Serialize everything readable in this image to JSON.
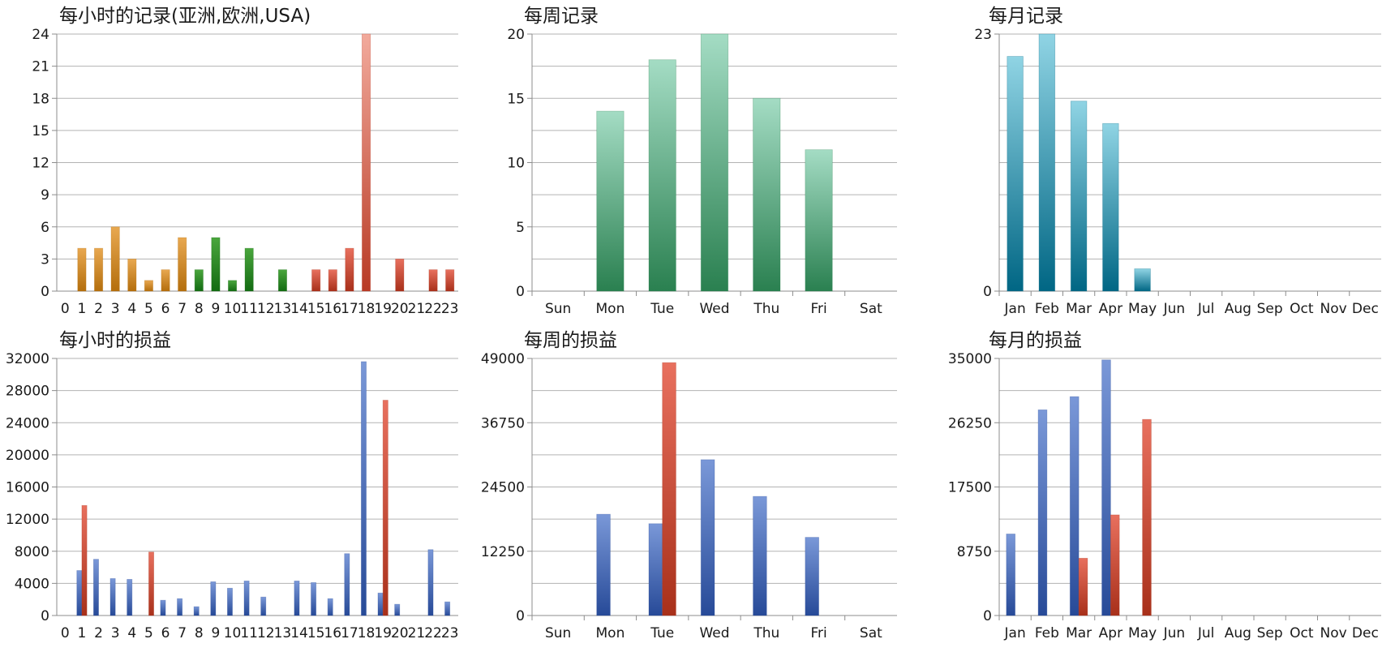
{
  "colors": {
    "orange": [
      "#e8a850",
      "#b46e0c"
    ],
    "green": [
      "#4aa63d",
      "#136b12"
    ],
    "red": [
      "#e8705e",
      "#a8301a"
    ],
    "blue": [
      "#7a98d8",
      "#274a98"
    ],
    "lightred": [
      "#f2aa9c",
      "#b83a25"
    ],
    "teal": [
      "#a4dcc4",
      "#2a8050"
    ],
    "cyan": [
      "#90d4e4",
      "#006684"
    ]
  },
  "chart_data": [
    {
      "type": "bar",
      "title": "每小时的记录(亚洲,欧洲,USA)",
      "categories": [
        "0",
        "1",
        "2",
        "3",
        "4",
        "5",
        "6",
        "7",
        "8",
        "9",
        "10",
        "11",
        "12",
        "13",
        "14",
        "15",
        "16",
        "17",
        "18",
        "19",
        "20",
        "21",
        "22",
        "23"
      ],
      "ylim": [
        0,
        24
      ],
      "yticks": [
        0,
        3,
        6,
        9,
        12,
        15,
        18,
        21,
        24
      ],
      "grid": true,
      "series": [
        {
          "values": [
            0,
            4,
            4,
            6,
            3,
            1,
            2,
            5,
            2,
            5,
            1,
            4,
            0,
            2,
            0,
            2,
            2,
            4,
            24,
            0,
            3,
            0,
            2,
            2
          ]
        }
      ],
      "bar_colors": [
        "orange",
        "orange",
        "orange",
        "orange",
        "orange",
        "orange",
        "orange",
        "orange",
        "green",
        "green",
        "green",
        "green",
        "green",
        "green",
        "green",
        "red",
        "red",
        "red",
        "lightred",
        "red",
        "red",
        "red",
        "red",
        "red"
      ]
    },
    {
      "type": "bar",
      "title": "每周记录",
      "categories": [
        "Sun",
        "Mon",
        "Tue",
        "Wed",
        "Thu",
        "Fri",
        "Sat"
      ],
      "ylim": [
        0,
        20
      ],
      "yticks": [
        0,
        5,
        10,
        15,
        20
      ],
      "grid": true,
      "series": [
        {
          "values": [
            0,
            14,
            18,
            20,
            15,
            11,
            0
          ],
          "color": "teal"
        }
      ]
    },
    {
      "type": "bar",
      "title": "每月记录",
      "categories": [
        "Jan",
        "Feb",
        "Mar",
        "Apr",
        "May",
        "Jun",
        "Jul",
        "Aug",
        "Sep",
        "Oct",
        "Nov",
        "Dec"
      ],
      "ylim": [
        0,
        23
      ],
      "yticks": [
        0,
        23
      ],
      "grid": true,
      "series": [
        {
          "values": [
            21,
            23,
            17,
            15,
            2,
            0,
            0,
            0,
            0,
            0,
            0,
            0
          ],
          "color": "cyan"
        }
      ]
    },
    {
      "type": "bar",
      "title": "每小时的损益",
      "categories": [
        "0",
        "1",
        "2",
        "3",
        "4",
        "5",
        "6",
        "7",
        "8",
        "9",
        "10",
        "11",
        "12",
        "13",
        "14",
        "15",
        "16",
        "17",
        "18",
        "19",
        "20",
        "21",
        "22",
        "23"
      ],
      "ylim": [
        0,
        32000
      ],
      "yticks": [
        0,
        4000,
        8000,
        12000,
        16000,
        20000,
        24000,
        28000,
        32000
      ],
      "grid": true,
      "series": [
        {
          "values": [
            0,
            5600,
            7000,
            4600,
            4500,
            0,
            1900,
            2100,
            1100,
            4200,
            3400,
            4300,
            2300,
            0,
            4300,
            4100,
            2100,
            7700,
            31600,
            2800,
            1400,
            0,
            8200,
            1700
          ],
          "color": "blue"
        },
        {
          "values": [
            0,
            13700,
            0,
            0,
            0,
            7900,
            0,
            0,
            0,
            0,
            0,
            0,
            0,
            0,
            0,
            0,
            0,
            0,
            0,
            26800,
            0,
            0,
            0,
            0
          ],
          "color": "red"
        }
      ]
    },
    {
      "type": "bar",
      "title": "每周的损益",
      "categories": [
        "Sun",
        "Mon",
        "Tue",
        "Wed",
        "Thu",
        "Fri",
        "Sat"
      ],
      "ylim": [
        0,
        49000
      ],
      "yticks": [
        0,
        12250,
        24500,
        36750,
        49000
      ],
      "grid": true,
      "series": [
        {
          "values": [
            0,
            19300,
            17500,
            29700,
            22700,
            14900,
            0
          ],
          "color": "blue"
        },
        {
          "values": [
            0,
            0,
            48200,
            0,
            0,
            0,
            0
          ],
          "color": "red"
        }
      ]
    },
    {
      "type": "bar",
      "title": "每月的损益",
      "categories": [
        "Jan",
        "Feb",
        "Mar",
        "Apr",
        "May",
        "Jun",
        "Jul",
        "Aug",
        "Sep",
        "Oct",
        "Nov",
        "Dec"
      ],
      "ylim": [
        0,
        35000
      ],
      "yticks": [
        0,
        8750,
        17500,
        26250,
        35000
      ],
      "grid": true,
      "series": [
        {
          "values": [
            11100,
            28000,
            29800,
            34800,
            0,
            0,
            0,
            0,
            0,
            0,
            0,
            0
          ],
          "color": "blue"
        },
        {
          "values": [
            0,
            0,
            7800,
            13700,
            26700,
            0,
            0,
            0,
            0,
            0,
            0,
            0
          ],
          "color": "red"
        }
      ]
    }
  ]
}
